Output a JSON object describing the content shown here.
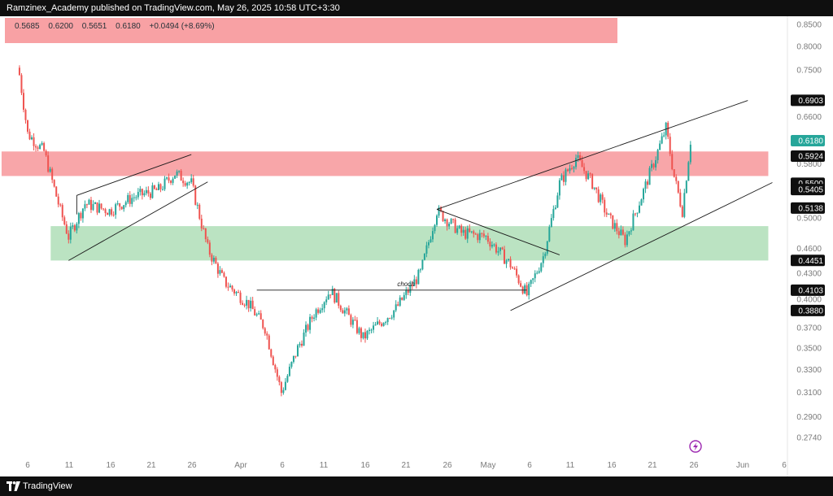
{
  "header": {
    "published_text": "Ramzinex_Academy published on TradingView.com, May 26, 2025 10:58 UTC+3:30"
  },
  "footer": {
    "brand": "TradingView"
  },
  "legend": {
    "symbol": "",
    "open": "0.5685",
    "high": "0.6200",
    "low": "0.5651",
    "close": "0.6180",
    "change": "+0.0494 (+8.69%)"
  },
  "colors": {
    "bull": "#26a69a",
    "bear": "#ef5350",
    "supply_zone": "#f8a1a4",
    "demand_zone": "#b7e1bf",
    "axis_text": "#7a7a7a",
    "label_bg": "#0f0f0f",
    "last_price_bg": "#26a69a",
    "lightning_icon": "#9c27b0"
  },
  "chart_data": {
    "type": "candlestick",
    "y_scale": "log",
    "y_ticks": [
      "0.8500",
      "0.8000",
      "0.7500",
      "0.6600",
      "0.5800",
      "0.5000",
      "0.4600",
      "0.4300",
      "0.4000",
      "0.3700",
      "0.3500",
      "0.3300",
      "0.3100",
      "0.2900",
      "0.2740"
    ],
    "y_tick_values": [
      0.85,
      0.8,
      0.75,
      0.66,
      0.58,
      0.5,
      0.46,
      0.43,
      0.4,
      0.37,
      0.35,
      0.33,
      0.31,
      0.29,
      0.274
    ],
    "x_ticks": [
      "6",
      "11",
      "16",
      "21",
      "26",
      "Apr",
      "6",
      "11",
      "16",
      "21",
      "26",
      "May",
      "6",
      "11",
      "16",
      "21",
      "26",
      "Jun",
      "6"
    ],
    "price_labels": [
      {
        "text": "0.6903",
        "value": 0.6903,
        "kind": "dark"
      },
      {
        "text": "0.6180",
        "value": 0.618,
        "kind": "last"
      },
      {
        "text": "0.5924",
        "value": 0.5924,
        "kind": "dark"
      },
      {
        "text": "0.5500",
        "value": 0.55,
        "kind": "dark"
      },
      {
        "text": "0.5405",
        "value": 0.5405,
        "kind": "dark"
      },
      {
        "text": "0.5138",
        "value": 0.5138,
        "kind": "dark"
      },
      {
        "text": "0.4451",
        "value": 0.4451,
        "kind": "dark"
      },
      {
        "text": "0.4103",
        "value": 0.4103,
        "kind": "dark"
      },
      {
        "text": "0.3880",
        "value": 0.388,
        "kind": "dark"
      }
    ],
    "zones": [
      {
        "name": "supply",
        "top": 0.6,
        "bottom": 0.561,
        "x_from": "Mar 5",
        "x_to": "Jun 5"
      },
      {
        "name": "demand",
        "top": 0.489,
        "bottom": 0.445,
        "x_from": "Mar 11",
        "x_to": "Jun 5"
      }
    ],
    "annotations": [
      {
        "text": "choch",
        "value": 0.4103
      }
    ],
    "close_path": [
      {
        "date": "Mar 5",
        "close": 0.74
      },
      {
        "date": "Mar 6",
        "close": 0.63
      },
      {
        "date": "Mar 8",
        "close": 0.6
      },
      {
        "date": "Mar 10",
        "close": 0.51
      },
      {
        "date": "Mar 11",
        "close": 0.475
      },
      {
        "date": "Mar 13",
        "close": 0.52
      },
      {
        "date": "Mar 16",
        "close": 0.51
      },
      {
        "date": "Mar 19",
        "close": 0.53
      },
      {
        "date": "Mar 22",
        "close": 0.54
      },
      {
        "date": "Mar 24",
        "close": 0.565
      },
      {
        "date": "Mar 26",
        "close": 0.55
      },
      {
        "date": "Mar 28",
        "close": 0.46
      },
      {
        "date": "Mar 30",
        "close": 0.42
      },
      {
        "date": "Apr 2",
        "close": 0.395
      },
      {
        "date": "Apr 4",
        "close": 0.37
      },
      {
        "date": "Apr 6",
        "close": 0.31
      },
      {
        "date": "Apr 8",
        "close": 0.35
      },
      {
        "date": "Apr 10",
        "close": 0.385
      },
      {
        "date": "Apr 12",
        "close": 0.41
      },
      {
        "date": "Apr 16",
        "close": 0.36
      },
      {
        "date": "Apr 20",
        "close": 0.39
      },
      {
        "date": "Apr 23",
        "close": 0.43
      },
      {
        "date": "Apr 25",
        "close": 0.51
      },
      {
        "date": "Apr 28",
        "close": 0.48
      },
      {
        "date": "May 1",
        "close": 0.475
      },
      {
        "date": "May 4",
        "close": 0.44
      },
      {
        "date": "May 6",
        "close": 0.405
      },
      {
        "date": "May 8",
        "close": 0.45
      },
      {
        "date": "May 10",
        "close": 0.55
      },
      {
        "date": "May 12",
        "close": 0.59
      },
      {
        "date": "May 14",
        "close": 0.55
      },
      {
        "date": "May 16",
        "close": 0.5
      },
      {
        "date": "May 18",
        "close": 0.47
      },
      {
        "date": "May 20",
        "close": 0.53
      },
      {
        "date": "May 22",
        "close": 0.6
      },
      {
        "date": "May 23",
        "close": 0.64
      },
      {
        "date": "May 24",
        "close": 0.56
      },
      {
        "date": "May 25",
        "close": 0.51
      },
      {
        "date": "May 26",
        "close": 0.618
      }
    ]
  }
}
